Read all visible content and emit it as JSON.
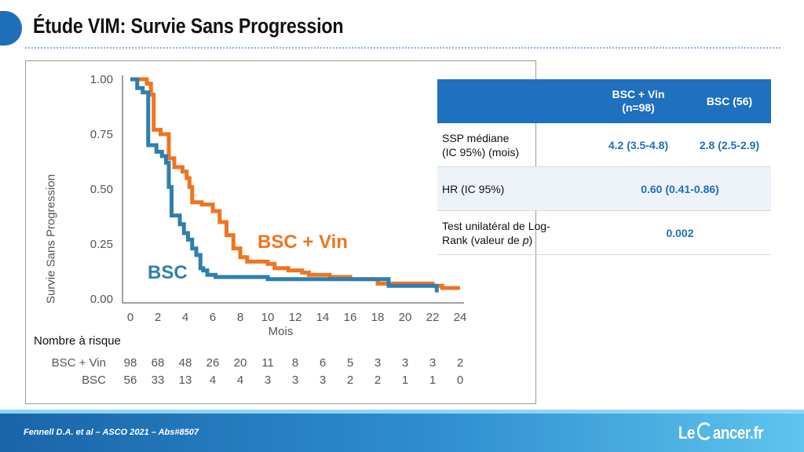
{
  "slide": {
    "title": "Étude VIM: Survie Sans Progression",
    "citation": "Fennell D.A. et al – ASCO 2021 – Abs#8507",
    "logo": {
      "pre": "Le",
      "post": "ancer.fr"
    }
  },
  "colors": {
    "bsc_vin": "#f07420",
    "bsc": "#2f7fae",
    "header": "#1f70bf",
    "value": "#1f6fb8"
  },
  "chart_data": {
    "type": "line",
    "title": "",
    "ylabel": "Survie Sans Progression",
    "xlabel": "Mois",
    "xlim": [
      0,
      24
    ],
    "ylim": [
      0,
      1
    ],
    "xticks": [
      "0",
      "2",
      "4",
      "6",
      "8",
      "10",
      "12",
      "14",
      "16",
      "18",
      "20",
      "22",
      "24"
    ],
    "yticks": [
      "0.00",
      "0.25",
      "0.50",
      "0.75",
      "1.00"
    ],
    "series": [
      {
        "name": "BSC + Vin",
        "color": "#f07420",
        "x": [
          0,
          1.2,
          1.5,
          1.7,
          2.2,
          2.8,
          3.2,
          3.8,
          4.1,
          4.3,
          4.5,
          5.2,
          6.0,
          6.5,
          7.0,
          7.5,
          8.0,
          8.5,
          9.0,
          10.0,
          10.5,
          11.5,
          12.5,
          13.0,
          13.8,
          14.5,
          16.0,
          17.0,
          18.0,
          18.8,
          20.0,
          22.0,
          22.7,
          24.0
        ],
        "y": [
          1.0,
          0.98,
          0.93,
          0.77,
          0.75,
          0.64,
          0.6,
          0.58,
          0.55,
          0.51,
          0.44,
          0.43,
          0.4,
          0.35,
          0.29,
          0.23,
          0.19,
          0.17,
          0.17,
          0.16,
          0.14,
          0.13,
          0.12,
          0.11,
          0.11,
          0.1,
          0.09,
          0.09,
          0.07,
          0.07,
          0.07,
          0.06,
          0.05,
          0.05
        ]
      },
      {
        "name": "BSC",
        "color": "#2f7fae",
        "x": [
          0,
          0.5,
          0.9,
          1.2,
          1.3,
          1.9,
          2.3,
          2.6,
          2.8,
          3.0,
          3.2,
          3.6,
          3.9,
          4.2,
          4.5,
          4.8,
          5.1,
          5.3,
          5.6,
          6.2,
          7.0,
          8.0,
          10.0,
          12.0,
          14.0,
          16.0,
          18.0,
          18.8,
          20.0,
          22.0,
          22.3
        ],
        "y": [
          1.0,
          0.96,
          0.94,
          0.94,
          0.7,
          0.67,
          0.65,
          0.62,
          0.51,
          0.38,
          0.38,
          0.34,
          0.3,
          0.27,
          0.23,
          0.2,
          0.14,
          0.13,
          0.11,
          0.1,
          0.1,
          0.1,
          0.09,
          0.09,
          0.09,
          0.09,
          0.09,
          0.06,
          0.06,
          0.06,
          0.03
        ]
      }
    ],
    "series_labels": {
      "bsc_vin": "BSC + Vin",
      "bsc": "BSC"
    },
    "risk_table": {
      "title": "Nombre à risque",
      "times": [
        0,
        2,
        4,
        6,
        8,
        10,
        12,
        14,
        16,
        18,
        20,
        22,
        24
      ],
      "rows": [
        {
          "label": "BSC + Vin",
          "values": [
            "98",
            "68",
            "48",
            "26",
            "20",
            "11",
            "8",
            "6",
            "5",
            "3",
            "3",
            "3",
            "2"
          ]
        },
        {
          "label": "BSC",
          "values": [
            "56",
            "33",
            "13",
            "4",
            "4",
            "3",
            "3",
            "3",
            "2",
            "2",
            "1",
            "1",
            "0"
          ]
        }
      ]
    }
  },
  "table": {
    "headers": [
      "",
      "BSC + Vin\n(n=98)",
      "BSC (56)"
    ],
    "rows": [
      {
        "label": "SSP médiane\n(IC 95%) (mois)",
        "bsc_vin": "4.2 (3.5-4.8)",
        "bsc": "2.8 (2.5-2.9)"
      },
      {
        "label": "HR (IC 95%)",
        "combined": "0.60 (0.41-0.86)"
      },
      {
        "label_pre": "Test unilatéral de Log-\nRank (valeur de ",
        "label_p": "p",
        "label_post": ")",
        "combined": "0.002"
      }
    ]
  }
}
